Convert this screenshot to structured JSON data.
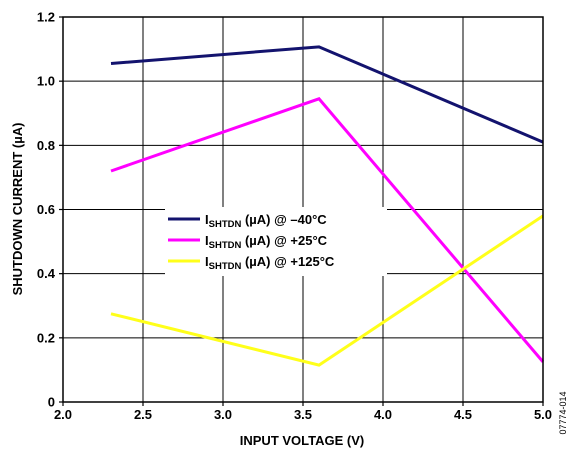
{
  "chart_data": {
    "type": "line",
    "xlabel": "INPUT VOLTAGE (V)",
    "ylabel": "SHUTDOWN CURRENT (µA)",
    "xlim": [
      2.0,
      5.0
    ],
    "ylim": [
      0,
      1.2
    ],
    "x_ticks": [
      "2.0",
      "2.5",
      "3.0",
      "3.5",
      "4.0",
      "4.5",
      "5.0"
    ],
    "y_ticks": [
      "0",
      "0.2",
      "0.4",
      "0.6",
      "0.8",
      "1.0",
      "1.2"
    ],
    "grid": true,
    "legend_position": "center-left",
    "series": [
      {
        "name": "ISHTDN (µA) @ –40°C",
        "name_main": "I",
        "name_sub": "SHTDN",
        "name_rest": " (µA) @ –40°C",
        "color": "#13136e",
        "x": [
          2.3,
          3.6,
          5.0
        ],
        "y": [
          1.055,
          1.107,
          0.81
        ]
      },
      {
        "name": "ISHTDN (µA) @ +25°C",
        "name_main": "I",
        "name_sub": "SHTDN",
        "name_rest": " (µA) @ +25°C",
        "color": "#ff00ff",
        "x": [
          2.3,
          3.6,
          5.0
        ],
        "y": [
          0.72,
          0.945,
          0.125
        ]
      },
      {
        "name": "ISHTDN (µA) @ +125°C",
        "name_main": "I",
        "name_sub": "SHTDN",
        "name_rest": " (µA) @ +125°C",
        "color": "#ffff1a",
        "x": [
          2.3,
          3.6,
          5.0
        ],
        "y": [
          0.275,
          0.115,
          0.58
        ]
      }
    ]
  },
  "figure_id": "07774-014"
}
